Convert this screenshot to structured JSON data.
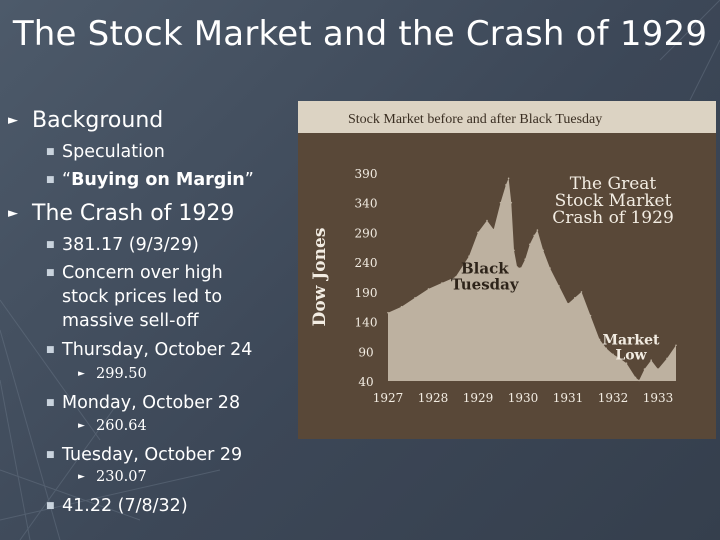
{
  "slide": {
    "title": "The Stock Market and the Crash of 1929",
    "bullets": {
      "background": "Background",
      "speculation": "Speculation",
      "buying_on_margin_open": "“",
      "buying_on_margin": "Buying on Margin",
      "buying_on_margin_close": "”",
      "crash": "The Crash of 1929",
      "peak": "381.17 (9/3/29)",
      "concern": "Concern over high stock prices led to massive sell-off",
      "thursday": "Thursday, October 24",
      "thursday_value": "299.50",
      "monday": "Monday, October 28",
      "monday_value": "260.64",
      "tuesday": "Tuesday, October 29",
      "tuesday_value": "230.07",
      "low": "41.22 (7/8/32)"
    }
  },
  "colors": {
    "slide_background": "#3c4757",
    "chart_background": "#594838",
    "chart_header": "#dcd3c3",
    "area_fill": "#bdb1a0",
    "chart_text": "#f2ece2"
  },
  "chart_data": {
    "type": "area",
    "title": "Stock Market before and after Black Tuesday",
    "ylabel": "Dow Jones",
    "xlabel": "",
    "x_ticks": [
      "1927",
      "1928",
      "1929",
      "1930",
      "1931",
      "1932",
      "1933"
    ],
    "y_ticks": [
      390,
      340,
      290,
      240,
      190,
      140,
      90,
      40
    ],
    "xlim": [
      1927,
      1933.4
    ],
    "ylim": [
      40,
      390
    ],
    "grid": false,
    "legend": "none",
    "annotations": [
      {
        "text": [
          "The Great",
          "Stock Market",
          "Crash of 1929"
        ],
        "x": 1932.0,
        "y": 363
      },
      {
        "text": [
          "Black",
          "Tuesday"
        ],
        "x": 1929.15,
        "y": 221
      },
      {
        "text": [
          "Market",
          "Low"
        ],
        "x": 1932.4,
        "y": 101
      }
    ],
    "series": [
      {
        "x": [
          1927.0,
          1927.3,
          1927.6,
          1927.9,
          1928.2,
          1928.5,
          1928.8,
          1929.0,
          1929.2,
          1929.35,
          1929.5,
          1929.62,
          1929.68,
          1929.74,
          1929.8,
          1929.87,
          1929.95,
          1930.05,
          1930.15,
          1930.25,
          1930.32,
          1930.45,
          1930.6,
          1930.8,
          1931.0,
          1931.15,
          1931.3,
          1931.5,
          1931.7,
          1931.85,
          1932.0,
          1932.15,
          1932.3,
          1932.5,
          1932.58,
          1932.7,
          1932.85,
          1933.0,
          1933.2,
          1933.4
        ],
        "values": [
          155,
          165,
          180,
          195,
          205,
          215,
          250,
          290,
          310,
          295,
          340,
          370,
          381,
          340,
          260,
          232,
          230,
          245,
          270,
          285,
          294,
          260,
          230,
          200,
          170,
          180,
          190,
          150,
          110,
          95,
          85,
          78,
          70,
          46,
          41,
          60,
          75,
          60,
          78,
          100
        ]
      }
    ]
  }
}
